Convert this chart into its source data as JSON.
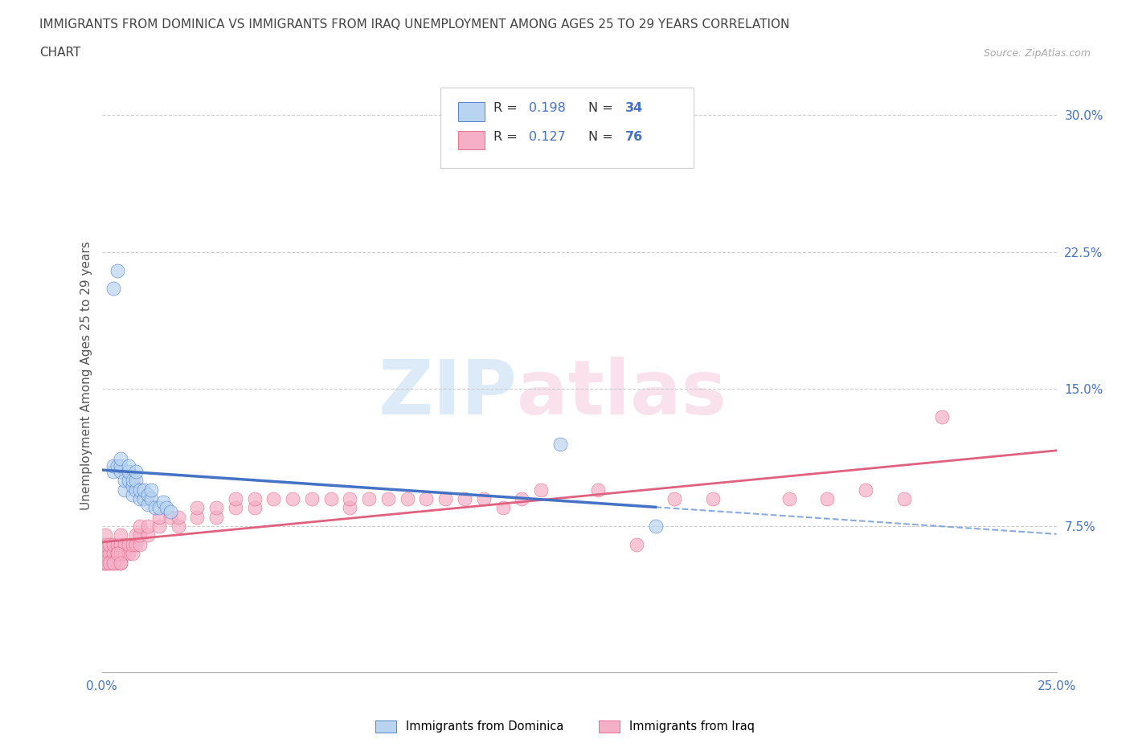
{
  "title_line1": "IMMIGRANTS FROM DOMINICA VS IMMIGRANTS FROM IRAQ UNEMPLOYMENT AMONG AGES 25 TO 29 YEARS CORRELATION",
  "title_line2": "CHART",
  "source_text": "Source: ZipAtlas.com",
  "ylabel": "Unemployment Among Ages 25 to 29 years",
  "xlim": [
    0.0,
    0.25
  ],
  "ylim": [
    -0.005,
    0.32
  ],
  "xtick_positions": [
    0.0,
    0.05,
    0.1,
    0.15,
    0.2,
    0.25
  ],
  "xtick_labels": [
    "0.0%",
    "",
    "",
    "",
    "",
    "25.0%"
  ],
  "ytick_right_vals": [
    0.075,
    0.15,
    0.225,
    0.3
  ],
  "ytick_right_labels": [
    "7.5%",
    "15.0%",
    "22.5%",
    "30.0%"
  ],
  "dominica_color_face": "#b8d4f0",
  "dominica_color_edge": "#4472c4",
  "iraq_color_face": "#f5b0c8",
  "iraq_color_edge": "#e06080",
  "dominica_line_color": "#4472c4",
  "dominica_dash_color": "#88aadd",
  "iraq_line_color": "#e06080",
  "right_tick_color": "#4472c4",
  "dominica_R": "0.198",
  "dominica_N": "34",
  "iraq_R": "0.127",
  "iraq_N": "76",
  "legend_dominica": "Immigrants from Dominica",
  "legend_iraq": "Immigrants from Iraq",
  "dominica_x": [
    0.003,
    0.003,
    0.004,
    0.005,
    0.005,
    0.005,
    0.006,
    0.006,
    0.007,
    0.007,
    0.007,
    0.008,
    0.008,
    0.008,
    0.009,
    0.009,
    0.009,
    0.01,
    0.01,
    0.011,
    0.011,
    0.012,
    0.012,
    0.013,
    0.013,
    0.014,
    0.015,
    0.016,
    0.017,
    0.018,
    0.12,
    0.145,
    0.003,
    0.004
  ],
  "dominica_y": [
    0.105,
    0.108,
    0.108,
    0.105,
    0.108,
    0.112,
    0.095,
    0.1,
    0.1,
    0.105,
    0.108,
    0.092,
    0.097,
    0.1,
    0.095,
    0.1,
    0.105,
    0.09,
    0.095,
    0.09,
    0.095,
    0.087,
    0.092,
    0.09,
    0.095,
    0.085,
    0.085,
    0.088,
    0.085,
    0.083,
    0.12,
    0.075,
    0.205,
    0.215
  ],
  "iraq_x": [
    0.0,
    0.0,
    0.0,
    0.001,
    0.001,
    0.001,
    0.001,
    0.002,
    0.002,
    0.002,
    0.003,
    0.003,
    0.003,
    0.004,
    0.004,
    0.004,
    0.005,
    0.005,
    0.005,
    0.005,
    0.006,
    0.006,
    0.007,
    0.007,
    0.008,
    0.008,
    0.009,
    0.009,
    0.01,
    0.01,
    0.01,
    0.012,
    0.012,
    0.015,
    0.015,
    0.018,
    0.02,
    0.02,
    0.025,
    0.025,
    0.03,
    0.03,
    0.035,
    0.035,
    0.04,
    0.04,
    0.045,
    0.05,
    0.055,
    0.06,
    0.065,
    0.065,
    0.07,
    0.075,
    0.08,
    0.085,
    0.09,
    0.095,
    0.1,
    0.105,
    0.11,
    0.115,
    0.13,
    0.14,
    0.15,
    0.16,
    0.18,
    0.19,
    0.2,
    0.21,
    0.22,
    0.001,
    0.002,
    0.003,
    0.004,
    0.005
  ],
  "iraq_y": [
    0.055,
    0.06,
    0.065,
    0.055,
    0.06,
    0.065,
    0.07,
    0.055,
    0.06,
    0.065,
    0.055,
    0.06,
    0.065,
    0.055,
    0.06,
    0.065,
    0.055,
    0.06,
    0.065,
    0.07,
    0.06,
    0.065,
    0.06,
    0.065,
    0.06,
    0.065,
    0.065,
    0.07,
    0.065,
    0.07,
    0.075,
    0.07,
    0.075,
    0.075,
    0.08,
    0.08,
    0.075,
    0.08,
    0.08,
    0.085,
    0.08,
    0.085,
    0.085,
    0.09,
    0.085,
    0.09,
    0.09,
    0.09,
    0.09,
    0.09,
    0.085,
    0.09,
    0.09,
    0.09,
    0.09,
    0.09,
    0.09,
    0.09,
    0.09,
    0.085,
    0.09,
    0.095,
    0.095,
    0.065,
    0.09,
    0.09,
    0.09,
    0.09,
    0.095,
    0.09,
    0.135,
    0.055,
    0.055,
    0.055,
    0.06,
    0.055
  ]
}
